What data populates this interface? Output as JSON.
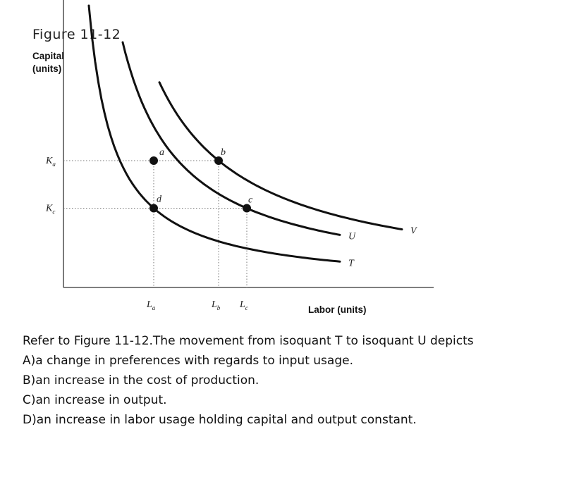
{
  "figure_title": "Figure 11-12",
  "chart_data": {
    "type": "line",
    "ylabel_line1": "Capital",
    "ylabel_line2": "(units)",
    "xlabel": "Labor (units)",
    "y_ticks": [
      {
        "name": "K",
        "sub": "a",
        "value": 2.0
      },
      {
        "name": "K",
        "sub": "c",
        "value": 1.25
      }
    ],
    "x_ticks": [
      {
        "name": "L",
        "sub": "a",
        "value": 1.6
      },
      {
        "name": "L",
        "sub": "b",
        "value": 2.75
      },
      {
        "name": "L",
        "sub": "c",
        "value": 3.25
      }
    ],
    "xlim": [
      0,
      6
    ],
    "ylim": [
      0,
      4
    ],
    "series": [
      {
        "name": "T",
        "k": 2.0,
        "x_start": 0.45,
        "x_end": 4.9
      },
      {
        "name": "U",
        "k": 4.06,
        "x_start": 1.05,
        "x_end": 4.9
      },
      {
        "name": "V",
        "k": 5.5,
        "x_start": 1.7,
        "x_end": 6.0
      }
    ],
    "points": [
      {
        "label": "a",
        "x": 1.6,
        "y": 2.0
      },
      {
        "label": "b",
        "x": 2.75,
        "y": 2.0
      },
      {
        "label": "c",
        "x": 3.25,
        "y": 1.25
      },
      {
        "label": "d",
        "x": 1.6,
        "y": 1.25
      }
    ]
  },
  "question": {
    "stem": "Refer to Figure 11-12.The movement from isoquant T to isoquant U depicts",
    "options": [
      "A)a change in preferences with regards to input usage.",
      "B)an increase in the cost of production.",
      "C)an increase in output.",
      "D)an increase in labor usage holding capital and output constant."
    ]
  }
}
